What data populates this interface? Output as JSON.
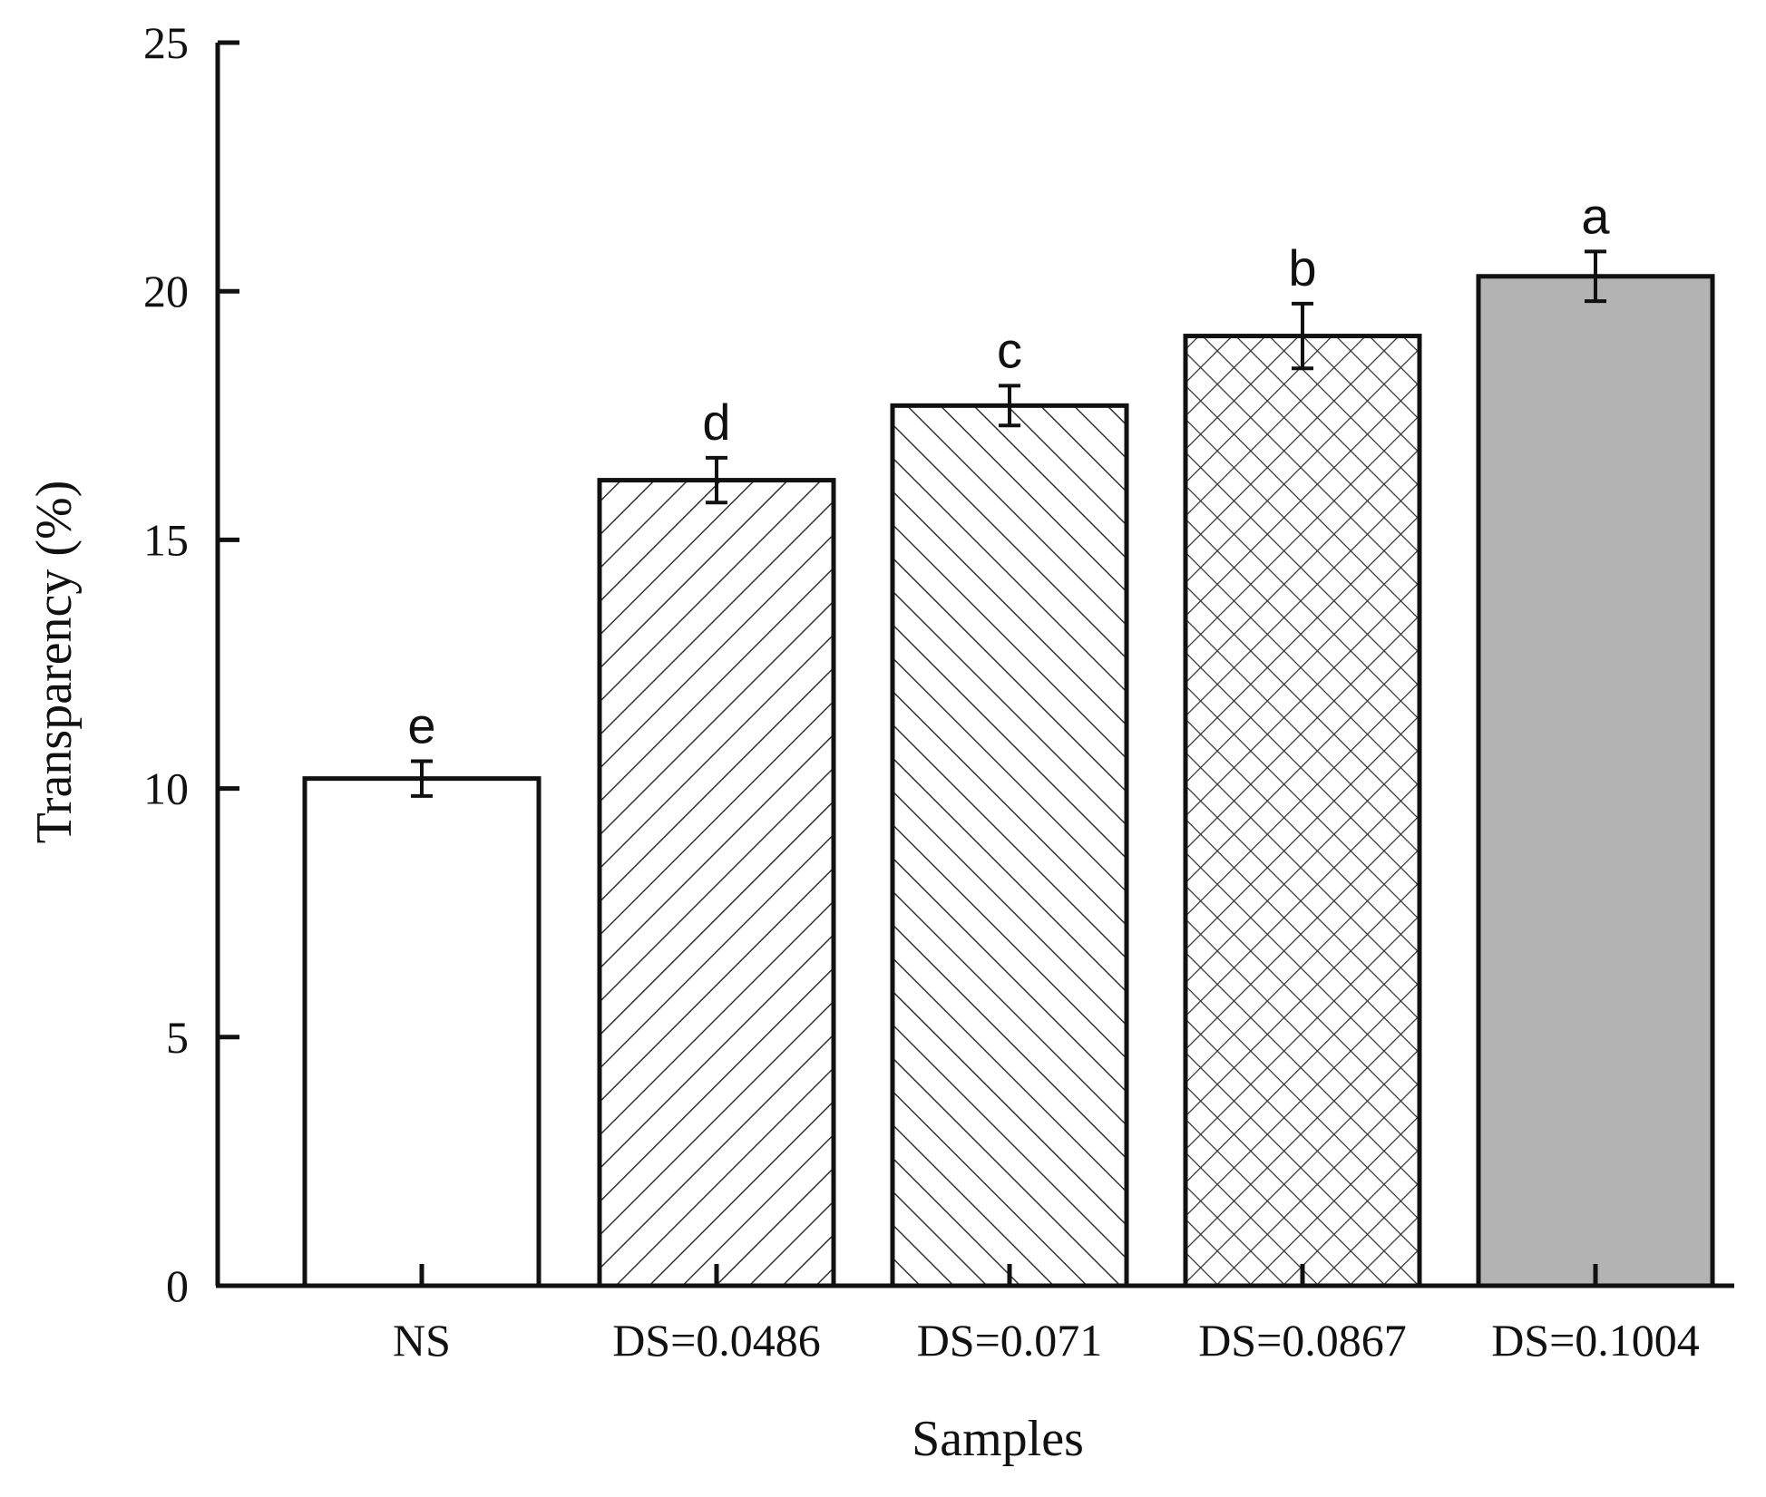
{
  "chart_data": {
    "type": "bar",
    "xlabel": "Samples",
    "ylabel": "Transparency (%)",
    "ylim": [
      0,
      25
    ],
    "yticks": [
      0,
      5,
      10,
      15,
      20,
      25
    ],
    "grid": false,
    "categories": [
      "NS",
      "DS=0.0486",
      "DS=0.071",
      "DS=0.0867",
      "DS=0.1004"
    ],
    "values": [
      10.2,
      16.2,
      17.7,
      19.1,
      20.3
    ],
    "errors": [
      0.35,
      0.45,
      0.4,
      0.65,
      0.5
    ],
    "significance": [
      "e",
      "d",
      "c",
      "b",
      "a"
    ],
    "fills": [
      "white",
      "hatch-forward",
      "hatch-backward",
      "crosshatch",
      "gray"
    ],
    "colors": {
      "axis": "#111111",
      "gray_fill": "#b3b3b3",
      "hatch": "#222222"
    }
  }
}
